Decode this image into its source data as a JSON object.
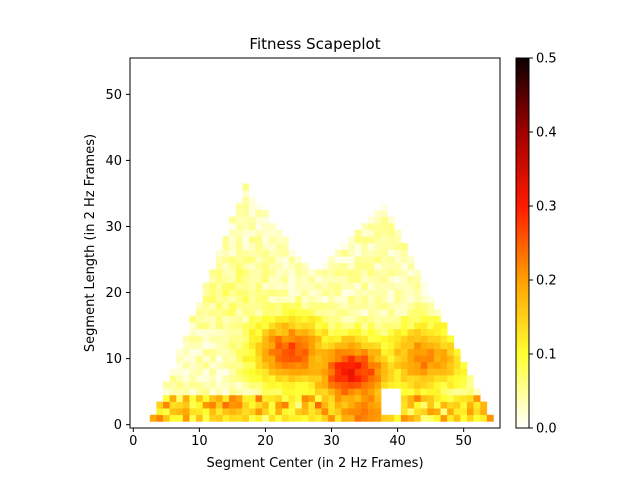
{
  "chart_data": {
    "type": "heatmap",
    "title": "Fitness Scapeplot",
    "xlabel": "Segment Center (in 2 Hz Frames)",
    "ylabel": "Segment Length (in 2 Hz Frames)",
    "xlim": [
      -0.5,
      55.5
    ],
    "ylim": [
      -0.5,
      55.5
    ],
    "xticks": [
      0,
      10,
      20,
      30,
      40,
      50
    ],
    "yticks": [
      0,
      10,
      20,
      30,
      40,
      50
    ],
    "colorbar": {
      "colormap": "hot_r",
      "range": [
        0.0,
        0.5
      ],
      "ticks": [
        "0.0",
        "0.1",
        "0.2",
        "0.3",
        "0.4",
        "0.5"
      ]
    },
    "description_of_values": "Fitness value per (segment center, segment length); empty (white) outside the triangular scapeplot support",
    "regions": [
      {
        "center": 33,
        "length": 8,
        "value": 0.28
      },
      {
        "center": 24,
        "length": 11,
        "value": 0.24
      },
      {
        "center": 44,
        "length": 10,
        "value": 0.2
      },
      {
        "center": 35,
        "length": 2,
        "value": 0.2
      },
      {
        "center": 14,
        "length": 20,
        "value": 0.04
      },
      {
        "center": 35,
        "length": 22,
        "value": 0.02
      }
    ]
  }
}
